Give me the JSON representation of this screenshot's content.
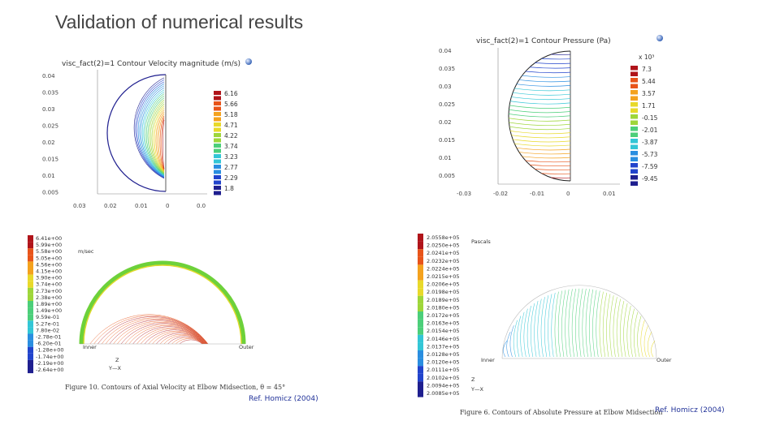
{
  "slide": {
    "title": "Validation of numerical results"
  },
  "panel_tl": {
    "title": "visc_fact(2)=1  Contour Velocity magnitude (m/s)",
    "yticks": [
      "0.04",
      "0.035",
      "0.03",
      "0.025",
      "0.02",
      "0.015",
      "0.01",
      "0.005"
    ],
    "xticks": [
      "0.03",
      "0.02",
      "0.01",
      "0",
      "0.0"
    ],
    "legend": [
      "6.16",
      "5.66",
      "5.18",
      "4.71",
      "4.22",
      "3.74",
      "3.23",
      "2.77",
      "2.29",
      "1.8"
    ]
  },
  "panel_tr": {
    "title": "visc_fact(2)=1  Contour Pressure (Pa)",
    "exponent": "x 10³",
    "yticks": [
      "0.04",
      "0.035",
      "0.03",
      "0.025",
      "0.02",
      "0.015",
      "0.01",
      "0.005"
    ],
    "xticks": [
      "-0.03",
      "-0.02",
      "-0.01",
      "0",
      "0.01"
    ],
    "legend": [
      "7.3",
      "5.44",
      "3.57",
      "1.71",
      "-0.15",
      "-2.01",
      "-3.87",
      "-5.73",
      "-7.59",
      "-9.45"
    ]
  },
  "panel_bl": {
    "legend": [
      "6.41e+00",
      "5.99e+00",
      "5.58e+00",
      "5.05e+00",
      "4.56e+00",
      "4.15e+00",
      "3.90e+00",
      "3.74e+00",
      "2.73e+00",
      "2.38e+00",
      "1.89e+00",
      "1.49e+00",
      "9.59e-01",
      "5.27e-01",
      "7.80e-02",
      "-2.78e-01",
      "-6.20e-01",
      "-1.28e+00",
      "-1.74e+00",
      "-2.19e+00",
      "-2.64e+00"
    ],
    "units": "m/sec",
    "inner_label": "Inner",
    "outer_label": "Outer",
    "axis_z": "Z",
    "axis_yx": "Y—X",
    "caption": "Figure 10. Contours of Axial Velocity at Elbow Midsection, θ = 45°",
    "ref": "Ref. Homicz (2004)"
  },
  "panel_br": {
    "legend": [
      "2.0558e+05",
      "2.0250e+05",
      "2.0241e+05",
      "2.0232e+05",
      "2.0224e+05",
      "2.0215e+05",
      "2.0206e+05",
      "2.0198e+05",
      "2.0189e+05",
      "2.0180e+05",
      "2.0172e+05",
      "2.0163e+05",
      "2.0154e+05",
      "2.0146e+05",
      "2.0137e+05",
      "2.0128e+05",
      "2.0120e+05",
      "2.0111e+05",
      "2.0102e+05",
      "2.0094e+05",
      "2.0085e+05"
    ],
    "units": "Pascals",
    "inner_label": "Inner",
    "outer_label": "Outer",
    "axis_z": "Z",
    "axis_yx": "Y—X",
    "caption": "Figure 6. Contours of Absolute Pressure at Elbow Midsection",
    "ref": "Ref. Homicz (2004)"
  },
  "colors": {
    "ramp": [
      "#1f1f8f",
      "#2244cc",
      "#2a8ee0",
      "#33c6d6",
      "#4ccf7a",
      "#9ed63a",
      "#e8d92a",
      "#f4a21e",
      "#e8541a",
      "#b0141a"
    ]
  }
}
